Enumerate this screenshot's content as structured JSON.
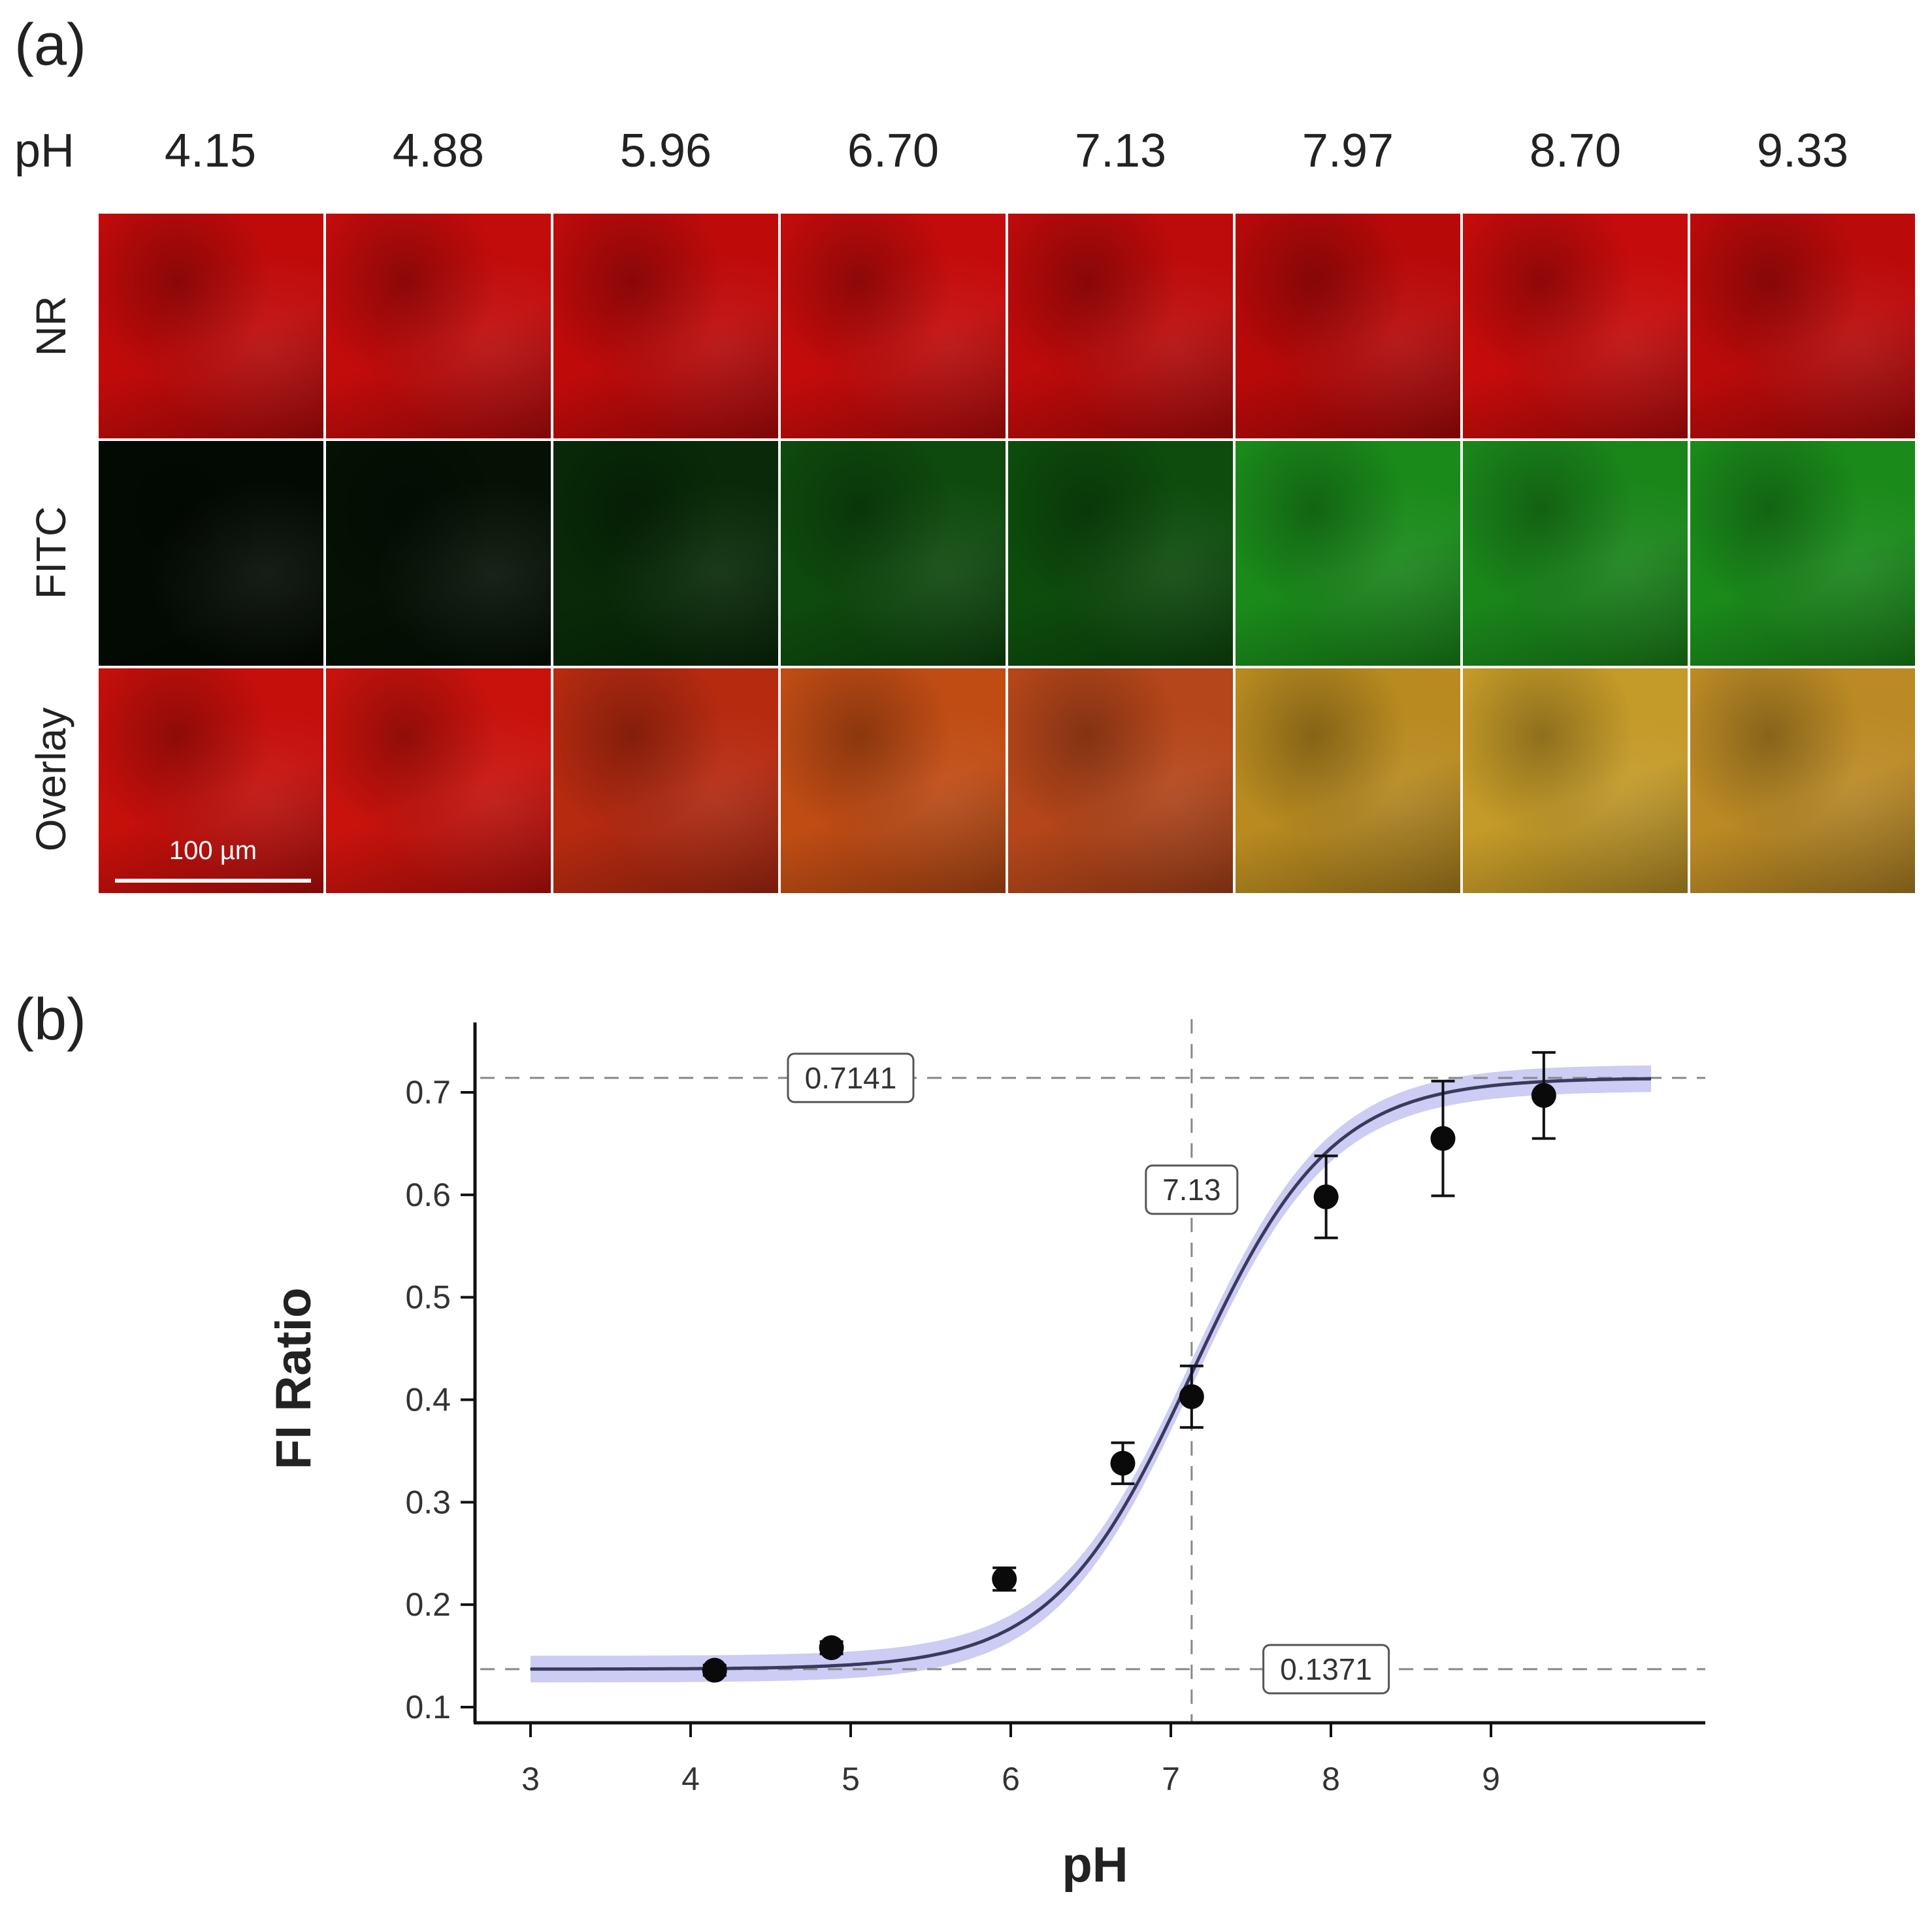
{
  "panel_a": {
    "label": "(a)",
    "ph_header": "pH",
    "ph_values": [
      "4.15",
      "4.88",
      "5.96",
      "6.70",
      "7.13",
      "7.97",
      "8.70",
      "9.33"
    ],
    "rows": [
      "NR",
      "FITC",
      "Overlay"
    ],
    "scale_bar": "100 µm",
    "colors": {
      "NR": [
        "#c00a0a",
        "#c20b0b",
        "#bf0a0a",
        "#c40b0b",
        "#bd0a0a",
        "#b80909",
        "#c60b0b",
        "#bb0a0a"
      ],
      "FITC": [
        "#030a03",
        "#051105",
        "#082a08",
        "#0e4a0e",
        "#0d4c0d",
        "#1a8a1a",
        "#1a861a",
        "#1a8a1a"
      ],
      "Overlay": [
        "#c50f0b",
        "#c9120c",
        "#b62a10",
        "#c04c14",
        "#b5461a",
        "#b88a20",
        "#c49a28",
        "#bb8a25"
      ]
    }
  },
  "chart_data": {
    "panel_label": "(b)",
    "type": "line",
    "title": "",
    "xlabel": "pH",
    "ylabel": "FI Ratio",
    "xlim": [
      2.6,
      10.4
    ],
    "ylim": [
      0.08,
      0.79
    ],
    "xticks": [
      "3",
      "4",
      "5",
      "6",
      "7",
      "8",
      "9"
    ],
    "yticks": [
      "0.1",
      "0.2",
      "0.3",
      "0.4",
      "0.5",
      "0.6",
      "0.7"
    ],
    "grid": false,
    "fit": {
      "model": "sigmoid",
      "bottom": 0.1371,
      "top": 0.7141,
      "pka": 7.13,
      "x_range": [
        3.0,
        10.0
      ],
      "line_color": "#3a3a5c",
      "band_color": "#8f8fe6",
      "band_width": 0.013
    },
    "points": {
      "x": [
        4.15,
        4.88,
        5.96,
        6.7,
        7.13,
        7.97,
        8.7,
        9.33
      ],
      "y": [
        0.136,
        0.158,
        0.225,
        0.338,
        0.403,
        0.598,
        0.655,
        0.697
      ],
      "err": [
        0.005,
        0.006,
        0.011,
        0.02,
        0.03,
        0.04,
        0.056,
        0.042
      ]
    },
    "reference_lines": {
      "h": [
        0.7141,
        0.1371
      ],
      "v": [
        7.13
      ]
    },
    "annotations": [
      {
        "text": "0.7141",
        "x": 5.0,
        "y": 0.7141
      },
      {
        "text": "7.13",
        "x": 7.13,
        "y": 0.605
      },
      {
        "text": "0.1371",
        "x": 7.97,
        "y": 0.1371
      }
    ]
  }
}
